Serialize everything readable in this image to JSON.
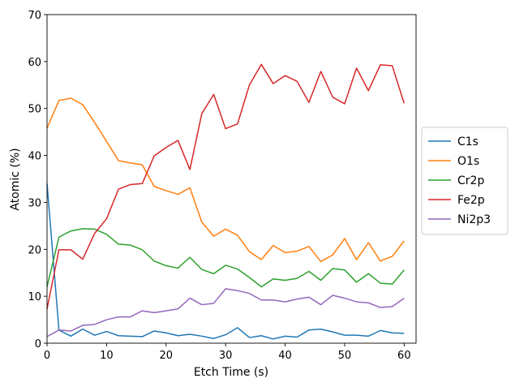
{
  "chart_data": {
    "type": "line",
    "title": "",
    "xlabel": "Etch Time (s)",
    "ylabel": "Atomic (%)",
    "xlim": [
      0,
      62
    ],
    "ylim": [
      0,
      70
    ],
    "xticks": [
      "0",
      "10",
      "20",
      "30",
      "40",
      "50",
      "60"
    ],
    "yticks": [
      "0",
      "10",
      "20",
      "30",
      "40",
      "50",
      "60",
      "70"
    ],
    "grid": false,
    "legend_position": "right, outside plot",
    "x": [
      0,
      2,
      4,
      6,
      8,
      10,
      12,
      14,
      16,
      18,
      20,
      22,
      24,
      26,
      28,
      30,
      32,
      34,
      36,
      38,
      40,
      42,
      44,
      46,
      48,
      50,
      52,
      54,
      56,
      58,
      60
    ],
    "series": [
      {
        "name": "C1s",
        "color": "#1f77b4",
        "values": [
          34.0,
          2.8,
          1.5,
          3.0,
          1.7,
          2.5,
          1.6,
          1.5,
          1.4,
          2.6,
          2.2,
          1.6,
          1.9,
          1.5,
          1.0,
          1.8,
          3.3,
          1.2,
          1.6,
          0.9,
          1.5,
          1.3,
          2.8,
          3.0,
          2.4,
          1.7,
          1.7,
          1.5,
          2.7,
          2.2,
          2.1
        ]
      },
      {
        "name": "O1s",
        "color": "#ff7f0e",
        "values": [
          45.8,
          51.7,
          52.2,
          50.8,
          47.0,
          43.0,
          38.9,
          38.4,
          38.0,
          33.4,
          32.5,
          31.7,
          33.1,
          25.8,
          22.8,
          24.3,
          23.0,
          19.5,
          17.8,
          20.8,
          19.3,
          19.6,
          20.6,
          17.4,
          18.8,
          22.3,
          17.8,
          21.4,
          17.5,
          18.5,
          21.8
        ]
      },
      {
        "name": "Cr2p",
        "color": "#2ca02c",
        "values": [
          12.0,
          22.6,
          23.9,
          24.4,
          24.3,
          23.2,
          21.1,
          20.9,
          19.9,
          17.5,
          16.5,
          16.0,
          18.3,
          15.7,
          14.8,
          16.6,
          15.8,
          14.0,
          12.0,
          13.7,
          13.4,
          13.8,
          15.3,
          13.4,
          15.9,
          15.6,
          13.0,
          14.8,
          12.8,
          12.6,
          15.6
        ]
      },
      {
        "name": "Fe2p",
        "color": "#d62728",
        "values": [
          7.3,
          19.9,
          19.9,
          17.9,
          23.4,
          26.5,
          32.8,
          33.8,
          34.0,
          39.9,
          41.7,
          43.2,
          37.0,
          48.9,
          53.0,
          45.7,
          46.7,
          55.0,
          59.4,
          55.3,
          57.0,
          55.8,
          51.3,
          57.9,
          52.4,
          51.0,
          58.6,
          53.8,
          59.3,
          59.1,
          51.1
        ]
      },
      {
        "name": "Ni2p3",
        "color": "#9467bd",
        "values": [
          1.4,
          2.8,
          2.6,
          3.8,
          4.0,
          5.0,
          5.6,
          5.6,
          6.9,
          6.5,
          6.9,
          7.3,
          9.6,
          8.2,
          8.5,
          11.6,
          11.2,
          10.6,
          9.2,
          9.2,
          8.8,
          9.4,
          9.8,
          8.2,
          10.2,
          9.6,
          8.8,
          8.6,
          7.6,
          7.8,
          9.6
        ]
      }
    ]
  }
}
